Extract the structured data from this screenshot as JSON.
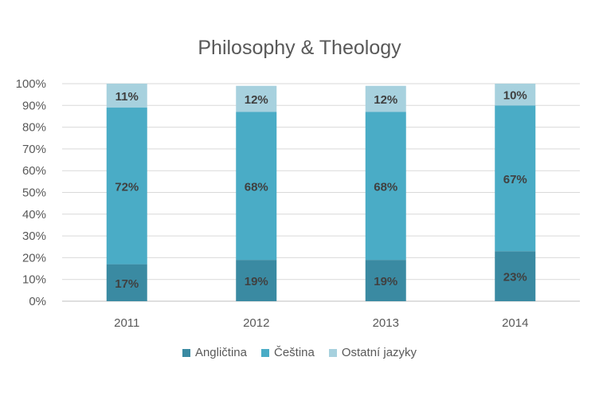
{
  "chart_data": {
    "type": "bar",
    "stacked": true,
    "title": "Philosophy & Theology",
    "categories": [
      "2011",
      "2012",
      "2013",
      "2014"
    ],
    "series": [
      {
        "name": "Angličtina",
        "values": [
          17,
          19,
          19,
          23
        ],
        "labels": [
          "17%",
          "19%",
          "19%",
          "23%"
        ],
        "color": "#3a8aa2"
      },
      {
        "name": "Čeština",
        "values": [
          72,
          68,
          68,
          67
        ],
        "labels": [
          "72%",
          "68%",
          "68%",
          "67%"
        ],
        "color": "#4aacc6"
      },
      {
        "name": "Ostatní jazyky",
        "values": [
          11,
          12,
          12,
          10
        ],
        "labels": [
          "11%",
          "12%",
          "12%",
          "10%"
        ],
        "color": "#a7d1de"
      }
    ],
    "yticks": [
      "0%",
      "10%",
      "20%",
      "30%",
      "40%",
      "50%",
      "60%",
      "70%",
      "80%",
      "90%",
      "100%"
    ],
    "ylim": [
      0,
      100
    ],
    "grid": true,
    "legend_position": "bottom"
  }
}
